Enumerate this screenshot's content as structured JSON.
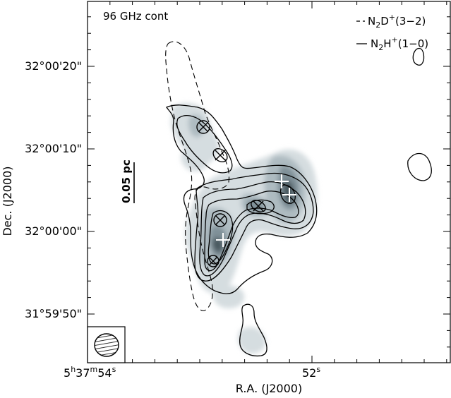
{
  "chart_data": {
    "type": "contour",
    "title": "96 GHz cont",
    "xlabel": "R.A. (J2000)",
    "ylabel": "Dec. (J2000)",
    "x_ticks": [
      {
        "hms": [
          "5",
          "37",
          "54"
        ]
      },
      {
        "hms": [
          "",
          "",
          "52"
        ]
      }
    ],
    "y_ticks": [
      "32°00'20\"",
      "32°00'10\"",
      "32°00'00\"",
      "31°59'50\""
    ],
    "legend": [
      {
        "style": "dashed",
        "chem": [
          "N",
          "2",
          "D",
          "+",
          "(3−2)"
        ]
      },
      {
        "style": "solid",
        "chem": [
          "N",
          "2",
          "H",
          "+",
          "(1−0)"
        ]
      }
    ],
    "scale_bar_label": "0.05 pc",
    "legend_placement": "top-right",
    "colors": {
      "continuum_light": "#cfd8dc",
      "continuum_mid": "#a9b7bd",
      "continuum_dark": "#6f8088",
      "continuum_darkest": "#3e4a50",
      "contour": "#000000",
      "marker_plus": "#ffffff"
    }
  }
}
